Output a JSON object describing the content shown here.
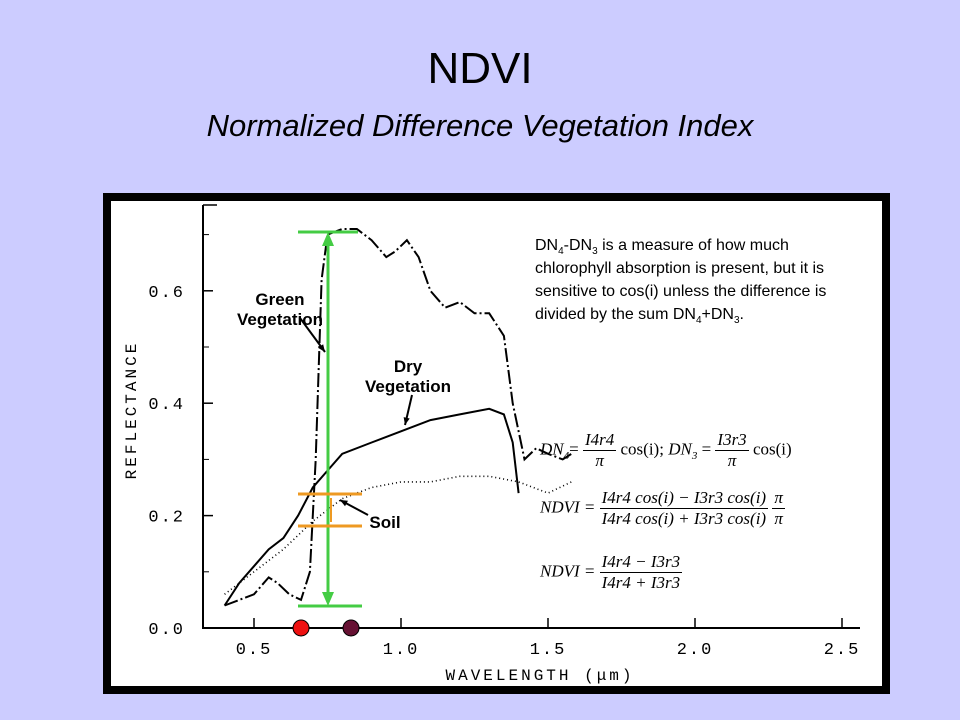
{
  "title": "NDVI",
  "subtitle": "Normalized Difference Vegetation Index",
  "note": {
    "part1": "DN",
    "sub1": "4",
    "part2": "-DN",
    "sub2": "3",
    "part3": " is a measure of how much chlorophyll absorption is present, but it is sensitive to cos(i) unless the difference is divided by the sum DN",
    "sub3": "4",
    "part4": "+DN",
    "sub4": "3",
    "part5": "."
  },
  "equations": {
    "eq1_dn4": "DN",
    "eq1_sub4": "4",
    "eq1_eq": "=",
    "eq1_num1": "I4r4",
    "eq1_den": "π",
    "eq1_cos": "cos(i); ",
    "eq1_dn3": "DN",
    "eq1_sub3": "3",
    "eq1_num2": "I3r3",
    "eq2_lhs": "NDVI =",
    "eq2_num": "I4r4 cos(i) − I3r3 cos(i)",
    "eq2_den": "I4r4 cos(i) + I3r3 cos(i)",
    "eq2_pi": "π",
    "eq3_lhs": "NDVI =",
    "eq3_num": "I4r4 − I3r3",
    "eq3_den": "I4r4 + I3r3"
  },
  "chart_data": {
    "type": "line",
    "xlabel": "WAVELENGTH (μm)",
    "ylabel": "REFLECTANCE",
    "xlim": [
      0.3,
      2.6
    ],
    "ylim": [
      0.0,
      0.72
    ],
    "x_ticks": [
      "0.5",
      "1.0",
      "1.5",
      "2.0",
      "2.5"
    ],
    "y_ticks": [
      "0.0",
      "0.2",
      "0.4",
      "0.6"
    ],
    "x_tick_values": [
      0.5,
      1.0,
      1.5,
      2.0,
      2.5
    ],
    "y_tick_values": [
      0.0,
      0.2,
      0.4,
      0.6
    ],
    "annotations": [
      "Green Vegetation",
      "Dry Vegetation",
      "Soil"
    ],
    "series": [
      {
        "name": "Green Vegetation",
        "style": "dash-dot",
        "x": [
          0.4,
          0.45,
          0.5,
          0.55,
          0.58,
          0.62,
          0.66,
          0.69,
          0.71,
          0.73,
          0.75,
          0.8,
          0.85,
          0.9,
          0.95,
          0.98,
          1.02,
          1.06,
          1.1,
          1.15,
          1.2,
          1.25,
          1.3,
          1.35,
          1.38,
          1.42,
          1.46,
          1.5,
          1.55,
          1.58
        ],
        "y": [
          0.04,
          0.05,
          0.06,
          0.09,
          0.08,
          0.06,
          0.05,
          0.1,
          0.3,
          0.62,
          0.7,
          0.71,
          0.71,
          0.69,
          0.66,
          0.67,
          0.69,
          0.66,
          0.6,
          0.57,
          0.58,
          0.56,
          0.56,
          0.52,
          0.4,
          0.3,
          0.32,
          0.31,
          0.3,
          0.31
        ]
      },
      {
        "name": "Dry Vegetation",
        "style": "solid",
        "x": [
          0.4,
          0.45,
          0.5,
          0.55,
          0.6,
          0.65,
          0.7,
          0.75,
          0.8,
          0.9,
          1.0,
          1.1,
          1.2,
          1.3,
          1.35,
          1.38,
          1.4
        ],
        "y": [
          0.04,
          0.08,
          0.11,
          0.14,
          0.16,
          0.2,
          0.25,
          0.28,
          0.31,
          0.33,
          0.35,
          0.37,
          0.38,
          0.39,
          0.38,
          0.33,
          0.24
        ]
      },
      {
        "name": "Soil",
        "style": "dotted",
        "x": [
          0.4,
          0.5,
          0.6,
          0.7,
          0.8,
          0.9,
          1.0,
          1.1,
          1.2,
          1.3,
          1.4,
          1.5,
          1.58
        ],
        "y": [
          0.06,
          0.1,
          0.14,
          0.19,
          0.23,
          0.25,
          0.26,
          0.26,
          0.27,
          0.27,
          0.26,
          0.24,
          0.26
        ]
      }
    ],
    "markers": [
      {
        "x": 0.66,
        "color": "#ee1111"
      },
      {
        "x": 0.83,
        "color": "#661133"
      }
    ],
    "overlay_colors": {
      "green": "#44cc44",
      "orange": "#ee9922"
    }
  }
}
